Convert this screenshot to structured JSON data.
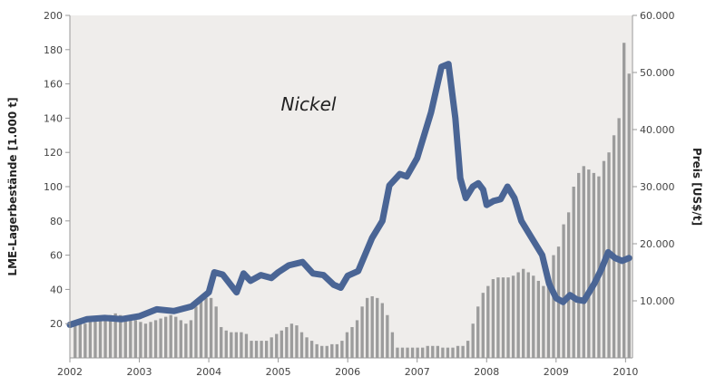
{
  "chart_data": {
    "type": "bar+line",
    "title": "Nickel",
    "x_ticks": [
      "2002",
      "2003",
      "2004",
      "2005",
      "2006",
      "2007",
      "2008",
      "2009",
      "2010"
    ],
    "x_range": [
      2002.0,
      2010.1
    ],
    "y_left": {
      "label": "LME-Lagerbestände [1.000 t]",
      "range": [
        0,
        200
      ],
      "ticks": [
        "20",
        "40",
        "60",
        "80",
        "100",
        "120",
        "140",
        "160",
        "180",
        "200"
      ]
    },
    "y_right": {
      "label": "Preis [US$/t]",
      "range": [
        0,
        60000
      ],
      "ticks": [
        "10.000",
        "20.000",
        "30.000",
        "40.000",
        "50.000",
        "60.000"
      ]
    },
    "grid": false,
    "plot_background": "#efedeb",
    "colors": {
      "bars": "#9c9c9c",
      "line": "#4a6595"
    },
    "series": [
      {
        "type": "bar",
        "axis": "left",
        "values": [
          20,
          21,
          20,
          21,
          22,
          23,
          24,
          25,
          26,
          25,
          24,
          23,
          22,
          21,
          20,
          21,
          22,
          23,
          24,
          25,
          24,
          22,
          20,
          22,
          30,
          33,
          35,
          35,
          30,
          18,
          16,
          15,
          15,
          15,
          14,
          10,
          10,
          10,
          10,
          12,
          14,
          16,
          18,
          20,
          19,
          15,
          12,
          10,
          8,
          7,
          7,
          8,
          8,
          10,
          15,
          18,
          22,
          30,
          35,
          36,
          35,
          32,
          25,
          15,
          6,
          6,
          6,
          6,
          6,
          6,
          7,
          7,
          7,
          6,
          6,
          6,
          7,
          7,
          10,
          20,
          30,
          38,
          42,
          46,
          47,
          47,
          47,
          48,
          50,
          52,
          50,
          48,
          45,
          42,
          47,
          60,
          65,
          78,
          85,
          100,
          108,
          112,
          110,
          108,
          106,
          115,
          120,
          130,
          140,
          184,
          166
        ]
      },
      {
        "type": "line",
        "axis": "right",
        "points": [
          [
            2002.0,
            5800
          ],
          [
            2002.25,
            6800
          ],
          [
            2002.5,
            7000
          ],
          [
            2002.75,
            6800
          ],
          [
            2003.0,
            7300
          ],
          [
            2003.25,
            8500
          ],
          [
            2003.5,
            8200
          ],
          [
            2003.75,
            9000
          ],
          [
            2004.0,
            11500
          ],
          [
            2004.08,
            15000
          ],
          [
            2004.2,
            14600
          ],
          [
            2004.4,
            11500
          ],
          [
            2004.5,
            14800
          ],
          [
            2004.6,
            13500
          ],
          [
            2004.75,
            14500
          ],
          [
            2004.9,
            14000
          ],
          [
            2005.0,
            15000
          ],
          [
            2005.15,
            16200
          ],
          [
            2005.35,
            16800
          ],
          [
            2005.5,
            14800
          ],
          [
            2005.65,
            14500
          ],
          [
            2005.8,
            12800
          ],
          [
            2005.9,
            12300
          ],
          [
            2006.0,
            14400
          ],
          [
            2006.15,
            15200
          ],
          [
            2006.35,
            21000
          ],
          [
            2006.5,
            24000
          ],
          [
            2006.6,
            30200
          ],
          [
            2006.75,
            32200
          ],
          [
            2006.85,
            31800
          ],
          [
            2007.0,
            35000
          ],
          [
            2007.2,
            43000
          ],
          [
            2007.35,
            51000
          ],
          [
            2007.45,
            51500
          ],
          [
            2007.55,
            42000
          ],
          [
            2007.62,
            31500
          ],
          [
            2007.7,
            28000
          ],
          [
            2007.8,
            30000
          ],
          [
            2007.88,
            30600
          ],
          [
            2007.95,
            29500
          ],
          [
            2008.0,
            26800
          ],
          [
            2008.1,
            27500
          ],
          [
            2008.2,
            27800
          ],
          [
            2008.3,
            30000
          ],
          [
            2008.4,
            28000
          ],
          [
            2008.5,
            24000
          ],
          [
            2008.65,
            21000
          ],
          [
            2008.8,
            18000
          ],
          [
            2008.9,
            13000
          ],
          [
            2009.0,
            10500
          ],
          [
            2009.1,
            9800
          ],
          [
            2009.2,
            11000
          ],
          [
            2009.3,
            10200
          ],
          [
            2009.4,
            10000
          ],
          [
            2009.55,
            13000
          ],
          [
            2009.65,
            15500
          ],
          [
            2009.75,
            18500
          ],
          [
            2009.85,
            17500
          ],
          [
            2009.95,
            17000
          ],
          [
            2010.05,
            17500
          ]
        ]
      }
    ]
  }
}
